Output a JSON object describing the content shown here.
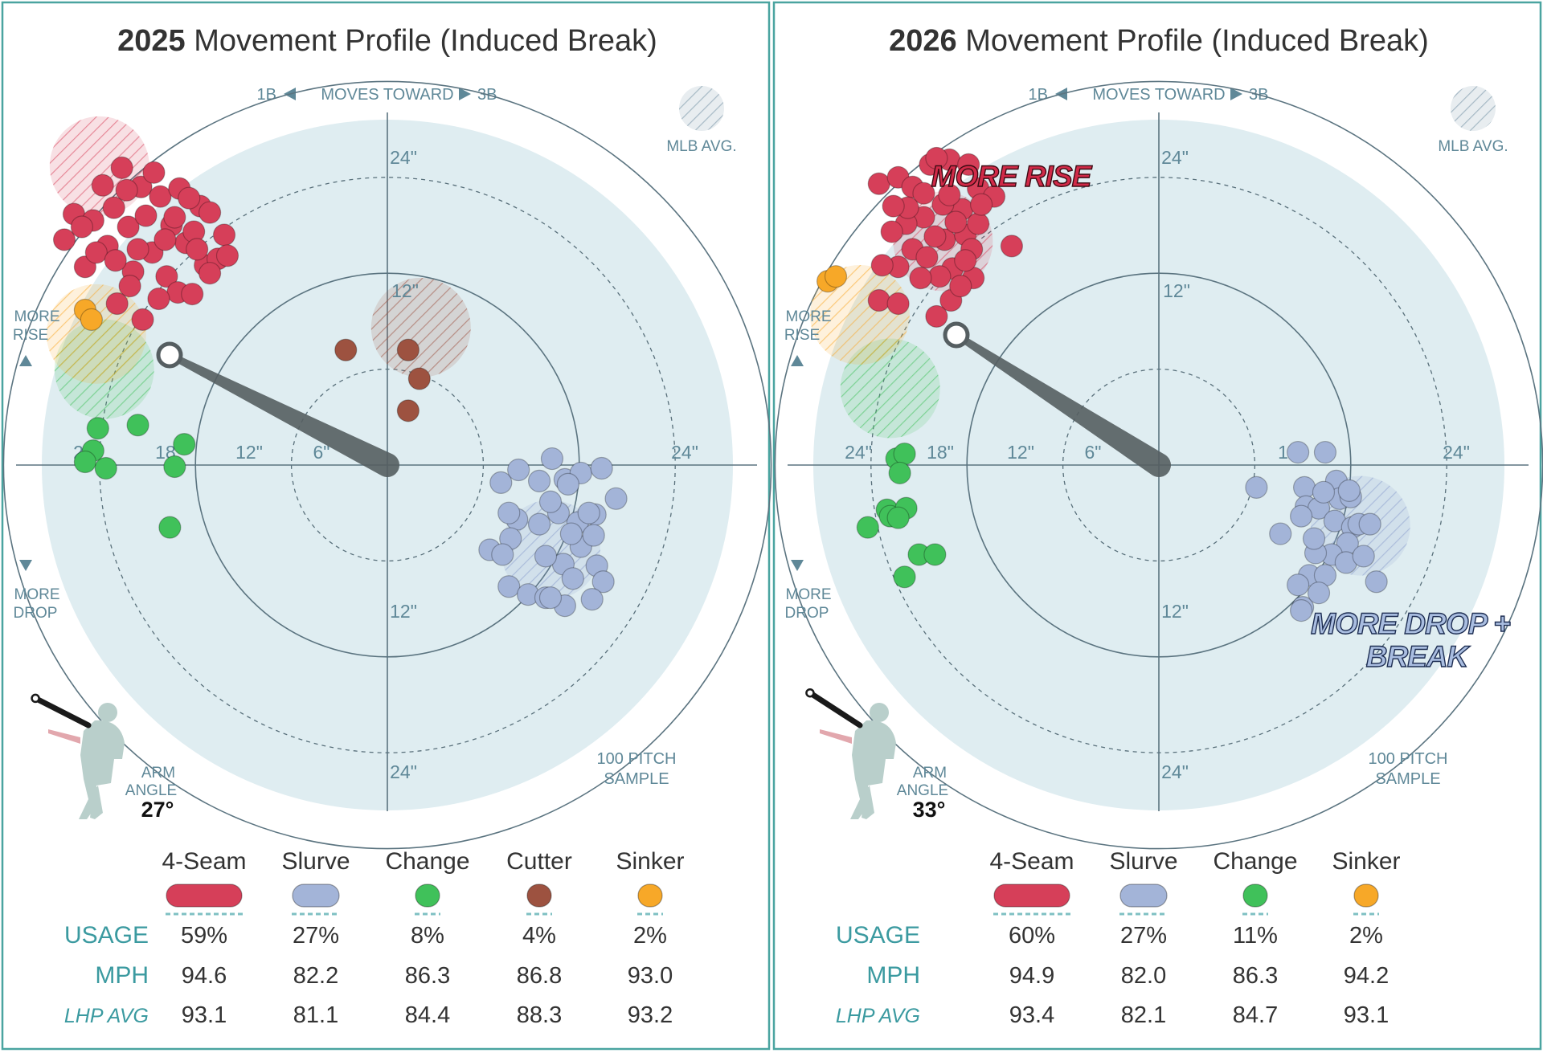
{
  "panels": [
    {
      "title_year": "2025",
      "title_rest": " Movement Profile (Induced Break)",
      "direction": {
        "left": "1B",
        "middle": "MOVES TOWARD",
        "right": "3B"
      },
      "mlb_avg_label": "MLB AVG.",
      "more_rise": [
        "MORE",
        "RISE"
      ],
      "more_drop": [
        "MORE",
        "DROP"
      ],
      "ring_labels": {
        "top_24": "24\"",
        "top_12": "12\"",
        "left_24": "24\"",
        "left_18": "18\"",
        "left_12": "12\"",
        "left_6": "6\"",
        "right_24": "24\"",
        "bottom_12": "12\"",
        "bottom_24": "24\""
      },
      "sample": [
        "100 PITCH",
        "SAMPLE"
      ],
      "arm_angle_label": [
        "ARM",
        "ANGLE"
      ],
      "arm_angle_value": "27°",
      "callouts": [],
      "table": {
        "row_labels": {
          "usage": "USAGE",
          "mph": "MPH",
          "lhp": "LHP AVG"
        },
        "pitches": [
          {
            "name": "4-Seam",
            "color": "#d63f59",
            "usage": "59%",
            "mph": "94.6",
            "lhp_avg": "93.1"
          },
          {
            "name": "Slurve",
            "color": "#a3b4d8",
            "usage": "27%",
            "mph": "82.2",
            "lhp_avg": "81.1"
          },
          {
            "name": "Change",
            "color": "#40c15a",
            "usage": "8%",
            "mph": "86.3",
            "lhp_avg": "84.4"
          },
          {
            "name": "Cutter",
            "color": "#9d5240",
            "usage": "4%",
            "mph": "86.8",
            "lhp_avg": "88.3"
          },
          {
            "name": "Sinker",
            "color": "#f7a828",
            "usage": "2%",
            "mph": "93.0",
            "lhp_avg": "93.2"
          }
        ]
      }
    },
    {
      "title_year": "2026",
      "title_rest": " Movement Profile (Induced Break)",
      "direction": {
        "left": "1B",
        "middle": "MOVES TOWARD",
        "right": "3B"
      },
      "mlb_avg_label": "MLB AVG.",
      "more_rise": [
        "MORE",
        "RISE"
      ],
      "more_drop": [
        "MORE",
        "DROP"
      ],
      "ring_labels": {
        "top_24": "24\"",
        "top_12": "12\"",
        "left_24": "24\"",
        "left_18": "18\"",
        "left_12": "12\"",
        "left_6": "6\"",
        "right_24": "24\"",
        "bottom_12": "12\"",
        "bottom_24": "24\"",
        "right_12": "12\""
      },
      "sample": [
        "100 PITCH",
        "SAMPLE"
      ],
      "arm_angle_label": [
        "ARM",
        "ANGLE"
      ],
      "arm_angle_value": "33°",
      "callouts": [
        {
          "lines": [
            "MORE RISE"
          ],
          "color": "#d12a48"
        },
        {
          "lines": [
            "MORE DROP +",
            "BREAK"
          ],
          "color": "#a9bde0"
        }
      ],
      "table": {
        "row_labels": {
          "usage": "USAGE",
          "mph": "MPH",
          "lhp": "LHP AVG"
        },
        "pitches": [
          {
            "name": "4-Seam",
            "color": "#d63f59",
            "usage": "60%",
            "mph": "94.9",
            "lhp_avg": "93.4"
          },
          {
            "name": "Slurve",
            "color": "#a3b4d8",
            "usage": "27%",
            "mph": "82.0",
            "lhp_avg": "82.1"
          },
          {
            "name": "Change",
            "color": "#40c15a",
            "usage": "11%",
            "mph": "86.3",
            "lhp_avg": "84.7"
          },
          {
            "name": "Sinker",
            "color": "#f7a828",
            "usage": "2%",
            "mph": "94.2",
            "lhp_avg": "93.1"
          }
        ]
      }
    }
  ],
  "chart_data": [
    {
      "type": "scatter",
      "title": "2025 Movement Profile (Induced Break)",
      "units": "inches",
      "xlim": [
        -24,
        24
      ],
      "ylim": [
        -24,
        24
      ],
      "arm_angle_deg": 27,
      "series": [
        {
          "name": "4-Seam",
          "color": "#d63f59",
          "avg": [
            -18,
            18.7
          ],
          "points": [
            [
              -20.2,
              14.1
            ],
            [
              -19.6,
              15.7
            ],
            [
              -18.9,
              12.4
            ],
            [
              -18.4,
              15.3
            ],
            [
              -17.8,
              17.5
            ],
            [
              -17.5,
              13.7
            ],
            [
              -17.1,
              16.1
            ],
            [
              -16.6,
              18.6
            ],
            [
              -16.2,
              14.9
            ],
            [
              -15.9,
              12.1
            ],
            [
              -15.4,
              17.4
            ],
            [
              -15.1,
              15.6
            ],
            [
              -14.7,
              13.3
            ],
            [
              -14.2,
              16.8
            ],
            [
              -13.8,
              11.8
            ],
            [
              -13.5,
              15.0
            ],
            [
              -13.0,
              17.3
            ],
            [
              -12.6,
              13.9
            ],
            [
              -12.1,
              14.6
            ],
            [
              -11.7,
              16.2
            ],
            [
              -11.4,
              12.5
            ],
            [
              -11.1,
              15.8
            ],
            [
              -10.6,
              12.9
            ],
            [
              -10.2,
              14.4
            ],
            [
              -10.0,
              13.1
            ],
            [
              -19.1,
              14.9
            ],
            [
              -18.2,
              13.3
            ],
            [
              -17.0,
              12.8
            ],
            [
              -16.3,
              17.2
            ],
            [
              -15.6,
              13.5
            ],
            [
              -14.6,
              18.3
            ],
            [
              -13.9,
              14.1
            ],
            [
              -13.3,
              15.5
            ],
            [
              -12.4,
              16.7
            ],
            [
              -11.9,
              13.5
            ],
            [
              -11.1,
              12.0
            ],
            [
              -15.3,
              9.1
            ],
            [
              -16.1,
              11.2
            ],
            [
              -13.1,
              10.8
            ],
            [
              -14.3,
              10.4
            ],
            [
              -12.2,
              10.7
            ],
            [
              -16.9,
              10.1
            ]
          ]
        },
        {
          "name": "Slurve",
          "color": "#a3b4d8",
          "avg": [
            10.2,
            -5.3
          ],
          "points": [
            [
              7.1,
              -1.1
            ],
            [
              8.2,
              -0.3
            ],
            [
              9.5,
              -1.0
            ],
            [
              10.3,
              0.4
            ],
            [
              11.1,
              -0.9
            ],
            [
              12.1,
              -0.5
            ],
            [
              13.4,
              -0.2
            ],
            [
              14.3,
              -2.1
            ],
            [
              13.0,
              -3.1
            ],
            [
              11.9,
              -3.6
            ],
            [
              10.7,
              -3.0
            ],
            [
              9.5,
              -3.7
            ],
            [
              8.1,
              -3.4
            ],
            [
              7.7,
              -4.6
            ],
            [
              6.4,
              -5.3
            ],
            [
              7.6,
              -7.6
            ],
            [
              8.8,
              -8.1
            ],
            [
              9.9,
              -8.3
            ],
            [
              11.0,
              -6.2
            ],
            [
              12.1,
              -5.1
            ],
            [
              13.1,
              -6.3
            ],
            [
              13.5,
              -7.3
            ],
            [
              12.8,
              -8.4
            ],
            [
              11.1,
              -8.8
            ],
            [
              10.2,
              -8.3
            ],
            [
              11.5,
              -4.3
            ],
            [
              9.9,
              -5.7
            ],
            [
              12.6,
              -3.0
            ],
            [
              10.2,
              -2.3
            ],
            [
              11.3,
              -1.2
            ],
            [
              7.2,
              -5.6
            ],
            [
              7.6,
              -3.0
            ],
            [
              12.9,
              -4.4
            ],
            [
              11.6,
              -7.1
            ]
          ]
        },
        {
          "name": "Change",
          "color": "#40c15a",
          "avg": [
            -17.7,
            6.0
          ],
          "points": [
            [
              -18.1,
              2.3
            ],
            [
              -18.4,
              0.9
            ],
            [
              -18.9,
              0.2
            ],
            [
              -17.6,
              -0.2
            ],
            [
              -15.6,
              2.5
            ],
            [
              -12.7,
              1.3
            ],
            [
              -13.3,
              -0.1
            ],
            [
              -13.6,
              -3.9
            ]
          ]
        },
        {
          "name": "Cutter",
          "color": "#9d5240",
          "avg": [
            2.1,
            8.6
          ],
          "points": [
            [
              -2.6,
              7.2
            ],
            [
              1.3,
              7.2
            ],
            [
              2.0,
              5.4
            ],
            [
              1.3,
              3.4
            ]
          ]
        },
        {
          "name": "Sinker",
          "color": "#f7a828",
          "avg": [
            -18.2,
            8.2
          ],
          "points": [
            [
              -18.9,
              9.7
            ],
            [
              -18.5,
              9.1
            ]
          ]
        }
      ]
    },
    {
      "type": "scatter",
      "title": "2026 Movement Profile (Induced Break)",
      "units": "inches",
      "xlim": [
        -24,
        24
      ],
      "ylim": [
        -24,
        24
      ],
      "arm_angle_deg": 33,
      "series": [
        {
          "name": "4-Seam",
          "color": "#d63f59",
          "avg": [
            -13.5,
            14.0
          ],
          "points": [
            [
              -17.5,
              17.6
            ],
            [
              -16.3,
              18.0
            ],
            [
              -15.4,
              17.4
            ],
            [
              -14.3,
              18.8
            ],
            [
              -13.1,
              19.1
            ],
            [
              -11.9,
              18.8
            ],
            [
              -11.3,
              17.3
            ],
            [
              -10.3,
              16.8
            ],
            [
              -12.3,
              16.0
            ],
            [
              -13.5,
              16.3
            ],
            [
              -14.7,
              15.5
            ],
            [
              -15.8,
              15.1
            ],
            [
              -16.7,
              14.6
            ],
            [
              -15.4,
              13.5
            ],
            [
              -14.5,
              13.0
            ],
            [
              -13.4,
              14.1
            ],
            [
              -12.1,
              14.4
            ],
            [
              -11.3,
              15.1
            ],
            [
              -11.7,
              13.5
            ],
            [
              -12.9,
              12.3
            ],
            [
              -13.7,
              11.8
            ],
            [
              -14.9,
              11.7
            ],
            [
              -16.3,
              12.4
            ],
            [
              -17.3,
              12.5
            ],
            [
              -17.5,
              10.3
            ],
            [
              -16.3,
              10.1
            ],
            [
              -13.0,
              10.3
            ],
            [
              -11.6,
              11.7
            ],
            [
              -9.2,
              13.7
            ],
            [
              -11.1,
              16.3
            ],
            [
              -13.1,
              16.9
            ],
            [
              -14.7,
              17.0
            ],
            [
              -12.7,
              15.2
            ],
            [
              -14.0,
              14.3
            ],
            [
              -12.1,
              12.8
            ],
            [
              -15.7,
              16.1
            ],
            [
              -13.9,
              19.2
            ],
            [
              -16.6,
              16.2
            ],
            [
              -13.9,
              9.3
            ],
            [
              -12.4,
              11.2
            ]
          ]
        },
        {
          "name": "Slurve",
          "color": "#a3b4d8",
          "avg": [
            12.6,
            -3.8
          ],
          "points": [
            [
              8.7,
              0.8
            ],
            [
              10.4,
              0.8
            ],
            [
              6.1,
              -1.4
            ],
            [
              9.1,
              -1.4
            ],
            [
              11.1,
              -1.0
            ],
            [
              9.2,
              -2.6
            ],
            [
              11.3,
              -2.1
            ],
            [
              12.0,
              -2.0
            ],
            [
              10.0,
              -2.7
            ],
            [
              8.9,
              -3.2
            ],
            [
              11.0,
              -3.5
            ],
            [
              12.1,
              -3.9
            ],
            [
              11.8,
              -4.9
            ],
            [
              10.8,
              -5.6
            ],
            [
              9.8,
              -5.5
            ],
            [
              7.6,
              -4.3
            ],
            [
              9.4,
              -6.9
            ],
            [
              10.4,
              -6.9
            ],
            [
              11.7,
              -6.1
            ],
            [
              12.8,
              -5.7
            ],
            [
              12.5,
              -3.7
            ],
            [
              13.2,
              -3.7
            ],
            [
              11.9,
              -1.6
            ],
            [
              8.7,
              -7.5
            ],
            [
              9.0,
              -8.9
            ],
            [
              8.9,
              -9.1
            ],
            [
              10.0,
              -8.0
            ],
            [
              13.6,
              -7.3
            ],
            [
              9.7,
              -4.6
            ],
            [
              10.3,
              -1.7
            ]
          ]
        },
        {
          "name": "Change",
          "color": "#40c15a",
          "avg": [
            -16.8,
            4.8
          ],
          "points": [
            [
              -16.4,
              0.4
            ],
            [
              -15.9,
              0.7
            ],
            [
              -16.2,
              -0.5
            ],
            [
              -17.0,
              -2.8
            ],
            [
              -16.8,
              -3.2
            ],
            [
              -15.8,
              -2.7
            ],
            [
              -18.2,
              -3.9
            ],
            [
              -15.0,
              -5.6
            ],
            [
              -14.0,
              -5.6
            ],
            [
              -15.9,
              -7.0
            ],
            [
              -16.3,
              -3.3
            ]
          ]
        },
        {
          "name": "Sinker",
          "color": "#f7a828",
          "avg": [
            -18.7,
            9.4
          ],
          "points": [
            [
              -20.7,
              11.5
            ],
            [
              -20.2,
              11.8
            ]
          ]
        }
      ]
    }
  ]
}
